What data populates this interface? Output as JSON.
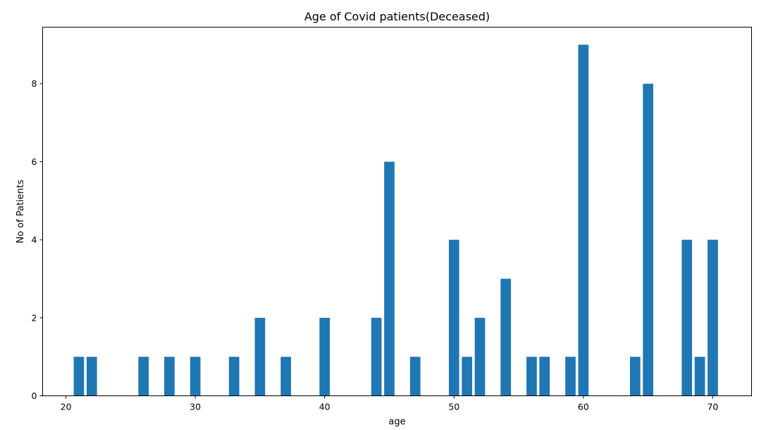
{
  "chart_data": {
    "type": "bar",
    "title": "Age of Covid patients(Deceased)",
    "xlabel": "age",
    "ylabel": "No of Patients",
    "xlim": [
      18.2,
      73.0
    ],
    "ylim": [
      0,
      9.45
    ],
    "xticks": [
      20,
      30,
      40,
      50,
      60,
      70
    ],
    "yticks": [
      0,
      2,
      4,
      6,
      8
    ],
    "bar_width": 0.8,
    "color": "#1f77b4",
    "grid": false,
    "x": [
      21,
      22,
      26,
      28,
      30,
      33,
      35,
      37,
      40,
      44,
      45,
      47,
      50,
      51,
      52,
      54,
      56,
      57,
      59,
      60,
      64,
      65,
      68,
      69,
      70
    ],
    "values": [
      1,
      1,
      1,
      1,
      1,
      1,
      2,
      1,
      2,
      2,
      6,
      1,
      4,
      1,
      2,
      3,
      1,
      1,
      1,
      9,
      1,
      8,
      4,
      1,
      4
    ]
  }
}
